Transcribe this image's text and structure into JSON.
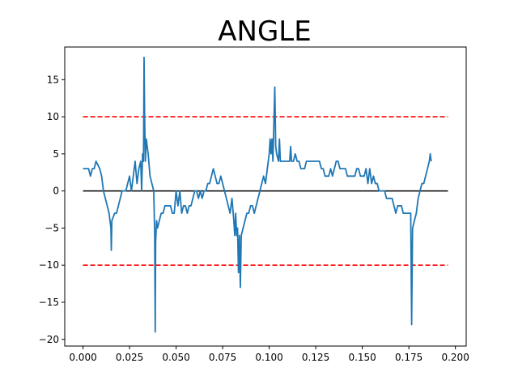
{
  "chart_data": {
    "type": "line",
    "title": "ANGLE",
    "xlabel": "",
    "ylabel": "",
    "xlim": [
      -0.0098,
      0.2058
    ],
    "ylim": [
      -20.9,
      19.4
    ],
    "grid": false,
    "legend": "none",
    "x_ticks": [
      {
        "value": 0.0,
        "label": "0.000"
      },
      {
        "value": 0.025,
        "label": "0.025"
      },
      {
        "value": 0.05,
        "label": "0.050"
      },
      {
        "value": 0.075,
        "label": "0.075"
      },
      {
        "value": 0.1,
        "label": "0.100"
      },
      {
        "value": 0.125,
        "label": "0.125"
      },
      {
        "value": 0.15,
        "label": "0.150"
      },
      {
        "value": 0.175,
        "label": "0.175"
      },
      {
        "value": 0.2,
        "label": "0.200"
      }
    ],
    "y_ticks": [
      {
        "value": -20,
        "label": "−20"
      },
      {
        "value": -15,
        "label": "−15"
      },
      {
        "value": -10,
        "label": "−10"
      },
      {
        "value": -5,
        "label": "−5"
      },
      {
        "value": 0,
        "label": "0"
      },
      {
        "value": 5,
        "label": "5"
      },
      {
        "value": 10,
        "label": "10"
      },
      {
        "value": 15,
        "label": "15"
      }
    ],
    "reference_lines": [
      {
        "y": 10,
        "x_range": [
          0.0,
          0.196
        ],
        "color": "#ff0000",
        "style": "dashed"
      },
      {
        "y": -10,
        "x_range": [
          0.0,
          0.196
        ],
        "color": "#ff0000",
        "style": "dashed"
      },
      {
        "y": 0,
        "x_range": [
          0.0,
          0.196
        ],
        "color": "#000000",
        "style": "solid"
      }
    ],
    "series": [
      {
        "color": "#1f77b4",
        "points": [
          [
            0.0,
            3
          ],
          [
            0.002,
            3
          ],
          [
            0.003,
            3
          ],
          [
            0.004,
            2
          ],
          [
            0.005,
            3
          ],
          [
            0.006,
            3
          ],
          [
            0.007,
            4
          ],
          [
            0.008,
            3.5
          ],
          [
            0.009,
            3
          ],
          [
            0.01,
            2
          ],
          [
            0.011,
            0
          ],
          [
            0.012,
            -1
          ],
          [
            0.013,
            -2
          ],
          [
            0.014,
            -3
          ],
          [
            0.015,
            -5
          ],
          [
            0.0152,
            -8
          ],
          [
            0.0155,
            -4
          ],
          [
            0.017,
            -3
          ],
          [
            0.018,
            -3
          ],
          [
            0.019,
            -2
          ],
          [
            0.02,
            -1
          ],
          [
            0.021,
            0
          ],
          [
            0.022,
            0
          ],
          [
            0.023,
            0
          ],
          [
            0.024,
            1
          ],
          [
            0.025,
            2
          ],
          [
            0.026,
            0
          ],
          [
            0.027,
            2
          ],
          [
            0.028,
            4
          ],
          [
            0.029,
            1
          ],
          [
            0.03,
            3
          ],
          [
            0.031,
            4
          ],
          [
            0.0315,
            0
          ],
          [
            0.032,
            5
          ],
          [
            0.0325,
            4
          ],
          [
            0.0328,
            18
          ],
          [
            0.0331,
            10
          ],
          [
            0.0335,
            4
          ],
          [
            0.034,
            7
          ],
          [
            0.035,
            5
          ],
          [
            0.036,
            2
          ],
          [
            0.037,
            1
          ],
          [
            0.038,
            0
          ],
          [
            0.0385,
            -6
          ],
          [
            0.0388,
            -19
          ],
          [
            0.039,
            -7
          ],
          [
            0.0395,
            -4
          ],
          [
            0.04,
            -5
          ],
          [
            0.041,
            -4
          ],
          [
            0.042,
            -3
          ],
          [
            0.043,
            -3
          ],
          [
            0.044,
            -2
          ],
          [
            0.045,
            -2
          ],
          [
            0.046,
            -2
          ],
          [
            0.047,
            -2
          ],
          [
            0.048,
            -3
          ],
          [
            0.049,
            -3
          ],
          [
            0.05,
            0
          ],
          [
            0.051,
            -2
          ],
          [
            0.052,
            0
          ],
          [
            0.053,
            -3
          ],
          [
            0.054,
            -2
          ],
          [
            0.055,
            -2
          ],
          [
            0.056,
            -3
          ],
          [
            0.057,
            -2
          ],
          [
            0.058,
            -2
          ],
          [
            0.059,
            -1
          ],
          [
            0.06,
            0
          ],
          [
            0.061,
            0
          ],
          [
            0.062,
            -1
          ],
          [
            0.063,
            0
          ],
          [
            0.064,
            -1
          ],
          [
            0.065,
            0
          ],
          [
            0.066,
            0
          ],
          [
            0.067,
            1
          ],
          [
            0.068,
            1
          ],
          [
            0.069,
            2
          ],
          [
            0.07,
            3
          ],
          [
            0.071,
            2
          ],
          [
            0.072,
            1
          ],
          [
            0.073,
            1
          ],
          [
            0.074,
            2
          ],
          [
            0.075,
            1
          ],
          [
            0.076,
            0
          ],
          [
            0.077,
            -1
          ],
          [
            0.078,
            -2
          ],
          [
            0.079,
            -3
          ],
          [
            0.08,
            -1
          ],
          [
            0.081,
            -4
          ],
          [
            0.0815,
            -6
          ],
          [
            0.082,
            -3
          ],
          [
            0.0825,
            -6
          ],
          [
            0.083,
            -5
          ],
          [
            0.0835,
            -11
          ],
          [
            0.084,
            -6
          ],
          [
            0.0845,
            -13
          ],
          [
            0.085,
            -6
          ],
          [
            0.086,
            -5
          ],
          [
            0.087,
            -4
          ],
          [
            0.088,
            -3
          ],
          [
            0.089,
            -3
          ],
          [
            0.09,
            -2
          ],
          [
            0.091,
            -2
          ],
          [
            0.092,
            -3
          ],
          [
            0.093,
            -2
          ],
          [
            0.094,
            -1
          ],
          [
            0.095,
            0
          ],
          [
            0.096,
            1
          ],
          [
            0.097,
            2
          ],
          [
            0.098,
            1
          ],
          [
            0.099,
            3
          ],
          [
            0.1,
            5
          ],
          [
            0.1005,
            7
          ],
          [
            0.101,
            5
          ],
          [
            0.1015,
            7
          ],
          [
            0.102,
            4
          ],
          [
            0.103,
            14
          ],
          [
            0.1035,
            6
          ],
          [
            0.104,
            5
          ],
          [
            0.105,
            4
          ],
          [
            0.1055,
            7
          ],
          [
            0.106,
            4
          ],
          [
            0.107,
            4
          ],
          [
            0.108,
            4
          ],
          [
            0.109,
            4
          ],
          [
            0.11,
            4
          ],
          [
            0.111,
            4
          ],
          [
            0.1115,
            6
          ],
          [
            0.112,
            4
          ],
          [
            0.113,
            4
          ],
          [
            0.114,
            5
          ],
          [
            0.115,
            4
          ],
          [
            0.116,
            4
          ],
          [
            0.117,
            3
          ],
          [
            0.118,
            3
          ],
          [
            0.119,
            3
          ],
          [
            0.12,
            4
          ],
          [
            0.121,
            4
          ],
          [
            0.122,
            4
          ],
          [
            0.123,
            4
          ],
          [
            0.124,
            4
          ],
          [
            0.125,
            4
          ],
          [
            0.126,
            4
          ],
          [
            0.127,
            4
          ],
          [
            0.128,
            3
          ],
          [
            0.129,
            3
          ],
          [
            0.13,
            2
          ],
          [
            0.131,
            2
          ],
          [
            0.132,
            2
          ],
          [
            0.133,
            3
          ],
          [
            0.134,
            2
          ],
          [
            0.135,
            3
          ],
          [
            0.136,
            4
          ],
          [
            0.137,
            4
          ],
          [
            0.138,
            3
          ],
          [
            0.139,
            3
          ],
          [
            0.14,
            3
          ],
          [
            0.141,
            3
          ],
          [
            0.142,
            2
          ],
          [
            0.143,
            2
          ],
          [
            0.144,
            2
          ],
          [
            0.145,
            2
          ],
          [
            0.146,
            2
          ],
          [
            0.147,
            3
          ],
          [
            0.148,
            3
          ],
          [
            0.149,
            2
          ],
          [
            0.15,
            2
          ],
          [
            0.151,
            2
          ],
          [
            0.152,
            3
          ],
          [
            0.153,
            1
          ],
          [
            0.154,
            3
          ],
          [
            0.155,
            1
          ],
          [
            0.156,
            2
          ],
          [
            0.157,
            1
          ],
          [
            0.158,
            1
          ],
          [
            0.159,
            0
          ],
          [
            0.16,
            0
          ],
          [
            0.161,
            0
          ],
          [
            0.162,
            0
          ],
          [
            0.163,
            -1
          ],
          [
            0.164,
            -1
          ],
          [
            0.165,
            -1
          ],
          [
            0.166,
            -1
          ],
          [
            0.167,
            -2
          ],
          [
            0.168,
            -3
          ],
          [
            0.169,
            -2
          ],
          [
            0.17,
            -2
          ],
          [
            0.171,
            -2
          ],
          [
            0.172,
            -3
          ],
          [
            0.173,
            -3
          ],
          [
            0.174,
            -3
          ],
          [
            0.175,
            -3
          ],
          [
            0.176,
            -3
          ],
          [
            0.1765,
            -18
          ],
          [
            0.177,
            -5
          ],
          [
            0.178,
            -4
          ],
          [
            0.179,
            -3
          ],
          [
            0.18,
            -1
          ],
          [
            0.181,
            0
          ],
          [
            0.182,
            1
          ],
          [
            0.183,
            1
          ],
          [
            0.184,
            2
          ],
          [
            0.185,
            3
          ],
          [
            0.186,
            4
          ],
          [
            0.1865,
            5
          ],
          [
            0.187,
            4
          ]
        ]
      }
    ]
  }
}
